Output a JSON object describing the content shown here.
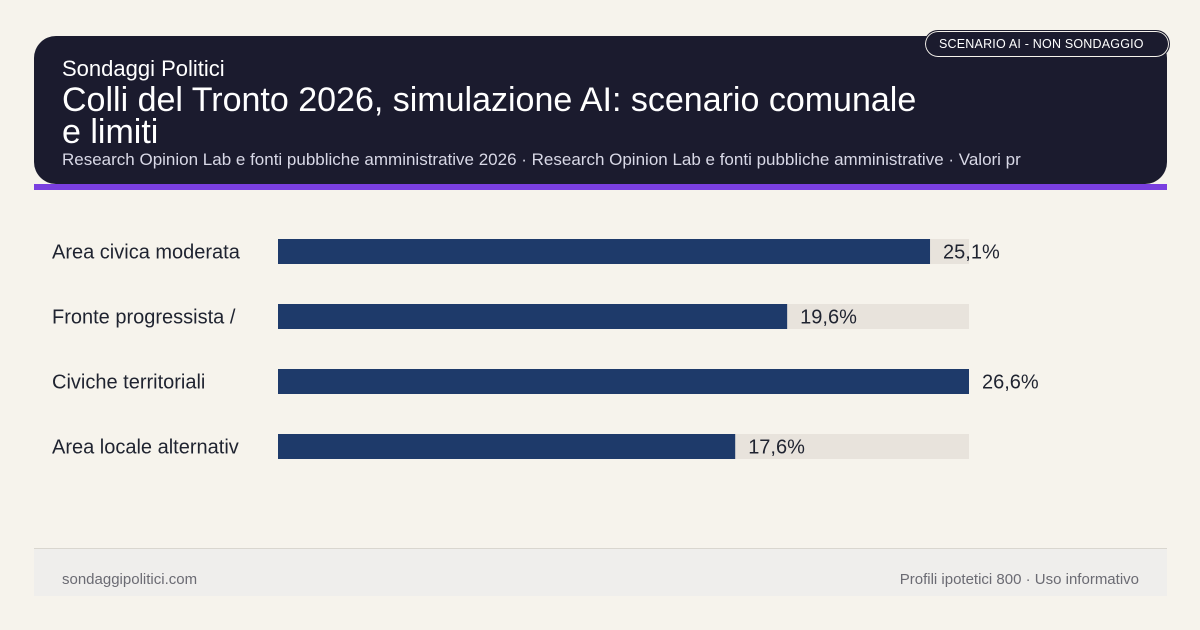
{
  "header": {
    "brand": "Sondaggi Politici",
    "title": "Colli del Tronto 2026, simulazione AI: scenario comunale e limiti",
    "subtitle": "Research Opinion Lab e fonti pubbliche amministrative 2026 · Research Opinion Lab e fonti pubbliche amministrative · Valori pr",
    "badge": "SCENARIO AI - NON SONDAGGIO"
  },
  "colors": {
    "header_bg": "#1b1b2e",
    "accent": "#7a3fe0",
    "bar": "#1e3a6a",
    "track": "#e8e3dc",
    "background": "#f6f3ec"
  },
  "chart_data": {
    "type": "bar",
    "orientation": "horizontal",
    "categories": [
      "Area civica moderata",
      "Fronte progressista /",
      "Civiche territoriali",
      "Area locale alternativ"
    ],
    "values": [
      25.1,
      19.6,
      26.6,
      17.6
    ],
    "value_labels": [
      "25,1%",
      "19,6%",
      "26,6%",
      "17,6%"
    ],
    "xlim": [
      0,
      26.6
    ],
    "grid": false
  },
  "footer": {
    "site": "sondaggipolitici.com",
    "note": "Profili ipotetici 800 · Uso informativo"
  }
}
